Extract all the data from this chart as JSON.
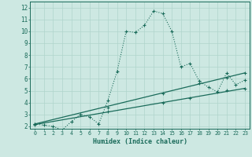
{
  "xlabel": "Humidex (Indice chaleur)",
  "bg_color": "#cde8e2",
  "line_color": "#1a6b5a",
  "grid_color": "#b0d4cc",
  "xlim": [
    -0.5,
    23.5
  ],
  "ylim": [
    1.8,
    12.5
  ],
  "xticks": [
    0,
    1,
    2,
    3,
    4,
    5,
    6,
    7,
    8,
    9,
    10,
    11,
    12,
    13,
    14,
    15,
    16,
    17,
    18,
    19,
    20,
    21,
    22,
    23
  ],
  "yticks": [
    2,
    3,
    4,
    5,
    6,
    7,
    8,
    9,
    10,
    11,
    12
  ],
  "curve1_x": [
    0,
    1,
    2,
    3,
    4,
    5,
    6,
    7,
    8,
    9,
    10,
    11,
    12,
    13,
    14,
    15,
    16,
    17,
    18,
    19,
    20,
    21,
    22,
    23
  ],
  "curve1_y": [
    2.2,
    2.1,
    2.0,
    1.7,
    2.4,
    3.0,
    2.8,
    2.2,
    4.2,
    6.6,
    10.0,
    9.9,
    10.5,
    11.7,
    11.5,
    10.0,
    7.0,
    7.3,
    5.8,
    5.3,
    4.9,
    6.5,
    5.5,
    5.9
  ],
  "curve2_x": [
    0,
    23
  ],
  "curve2_y": [
    2.15,
    5.2
  ],
  "curve3_x": [
    0,
    23
  ],
  "curve3_y": [
    2.2,
    6.5
  ],
  "marker_x1": [
    0,
    1,
    2,
    3,
    4,
    5,
    6,
    7,
    8,
    9,
    10,
    11,
    12,
    13,
    14,
    15,
    16,
    17,
    18,
    19,
    20,
    21,
    22,
    23
  ],
  "marker_y1": [
    2.2,
    2.1,
    2.0,
    1.7,
    2.4,
    3.0,
    2.8,
    2.2,
    4.2,
    6.6,
    10.0,
    9.9,
    10.5,
    11.7,
    11.5,
    10.0,
    7.0,
    7.3,
    5.8,
    5.3,
    4.9,
    6.5,
    5.5,
    5.9
  ],
  "marker_x2": [
    0,
    8,
    14,
    17,
    21,
    23
  ],
  "marker_y2": [
    2.15,
    3.25,
    4.0,
    4.4,
    5.05,
    5.2
  ],
  "marker_x3": [
    0,
    5,
    8,
    14,
    18,
    21,
    23
  ],
  "marker_y3": [
    2.2,
    3.0,
    3.6,
    4.8,
    5.6,
    6.1,
    6.5
  ]
}
